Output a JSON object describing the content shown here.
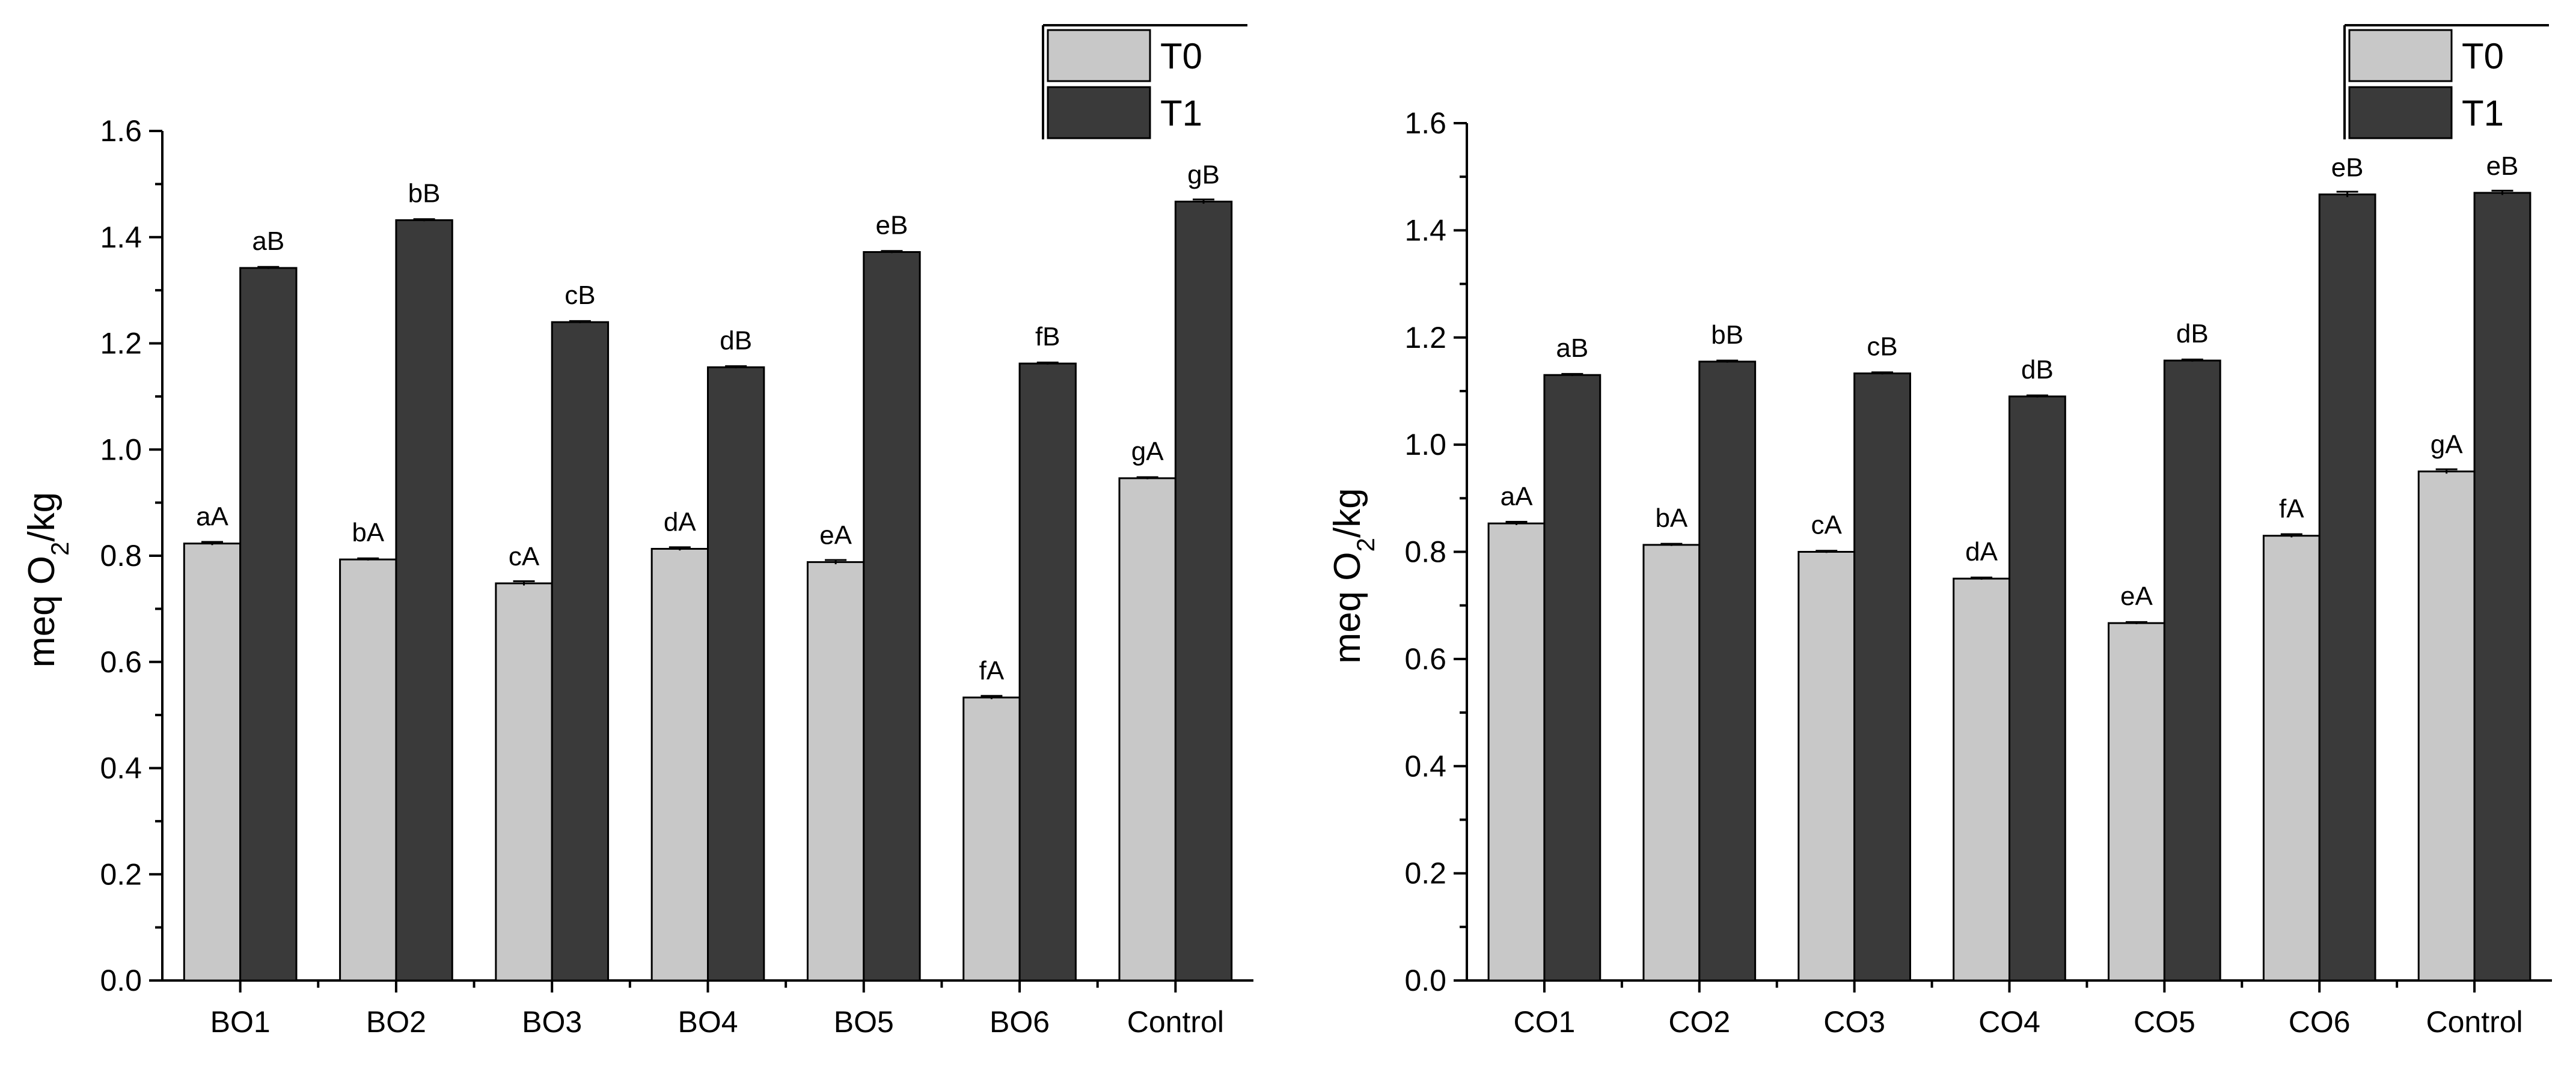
{
  "colors": {
    "T0": "#c8c8c8",
    "T1": "#3a3a3a"
  },
  "chart_data": [
    {
      "type": "bar",
      "ylabel_main": "meq O",
      "ylabel_sub": "2",
      "ylabel_tail": "/kg",
      "ylim": [
        0,
        1.6
      ],
      "yticks": [
        "0.0",
        "0.2",
        "0.4",
        "0.6",
        "0.8",
        "1.0",
        "1.2",
        "1.4",
        "1.6"
      ],
      "categories": [
        "BO1",
        "BO2",
        "BO3",
        "BO4",
        "BO5",
        "BO6",
        "Control"
      ],
      "legend": [
        "T0",
        "T1"
      ],
      "series": [
        {
          "name": "T0",
          "values": [
            0.823,
            0.793,
            0.748,
            0.813,
            0.788,
            0.533,
            0.946
          ],
          "errors": [
            0.003,
            0.002,
            0.004,
            0.003,
            0.004,
            0.003,
            0.002
          ],
          "labels": [
            "aA",
            "bA",
            "cA",
            "dA",
            "eA",
            "fA",
            "gA"
          ]
        },
        {
          "name": "T1",
          "values": [
            1.342,
            1.432,
            1.24,
            1.155,
            1.372,
            1.162,
            1.467
          ],
          "errors": [
            0.002,
            0.002,
            0.002,
            0.002,
            0.002,
            0.002,
            0.004
          ],
          "labels": [
            "aB",
            "bB",
            "cB",
            "dB",
            "eB",
            "fB",
            "gB"
          ]
        }
      ]
    },
    {
      "type": "bar",
      "ylabel_main": "meq O",
      "ylabel_sub": "2",
      "ylabel_tail": "/kg",
      "ylim": [
        0,
        1.6
      ],
      "yticks": [
        "0.0",
        "0.2",
        "0.4",
        "0.6",
        "0.8",
        "1.0",
        "1.2",
        "1.4",
        "1.6"
      ],
      "categories": [
        "CO1",
        "CO2",
        "CO3",
        "CO4",
        "CO5",
        "CO6",
        "Control"
      ],
      "legend": [
        "T0",
        "T1"
      ],
      "series": [
        {
          "name": "T0",
          "values": [
            0.853,
            0.813,
            0.8,
            0.75,
            0.667,
            0.83,
            0.95
          ],
          "errors": [
            0.003,
            0.002,
            0.002,
            0.002,
            0.002,
            0.003,
            0.004
          ],
          "labels": [
            "aA",
            "bA",
            "cA",
            "dA",
            "eA",
            "fA",
            "gA"
          ]
        },
        {
          "name": "T1",
          "values": [
            1.13,
            1.155,
            1.133,
            1.09,
            1.157,
            1.467,
            1.47
          ],
          "errors": [
            0.002,
            0.002,
            0.002,
            0.002,
            0.002,
            0.005,
            0.004
          ],
          "labels": [
            "aB",
            "bB",
            "cB",
            "dB",
            "dB",
            "eB",
            "eB"
          ]
        }
      ]
    }
  ]
}
